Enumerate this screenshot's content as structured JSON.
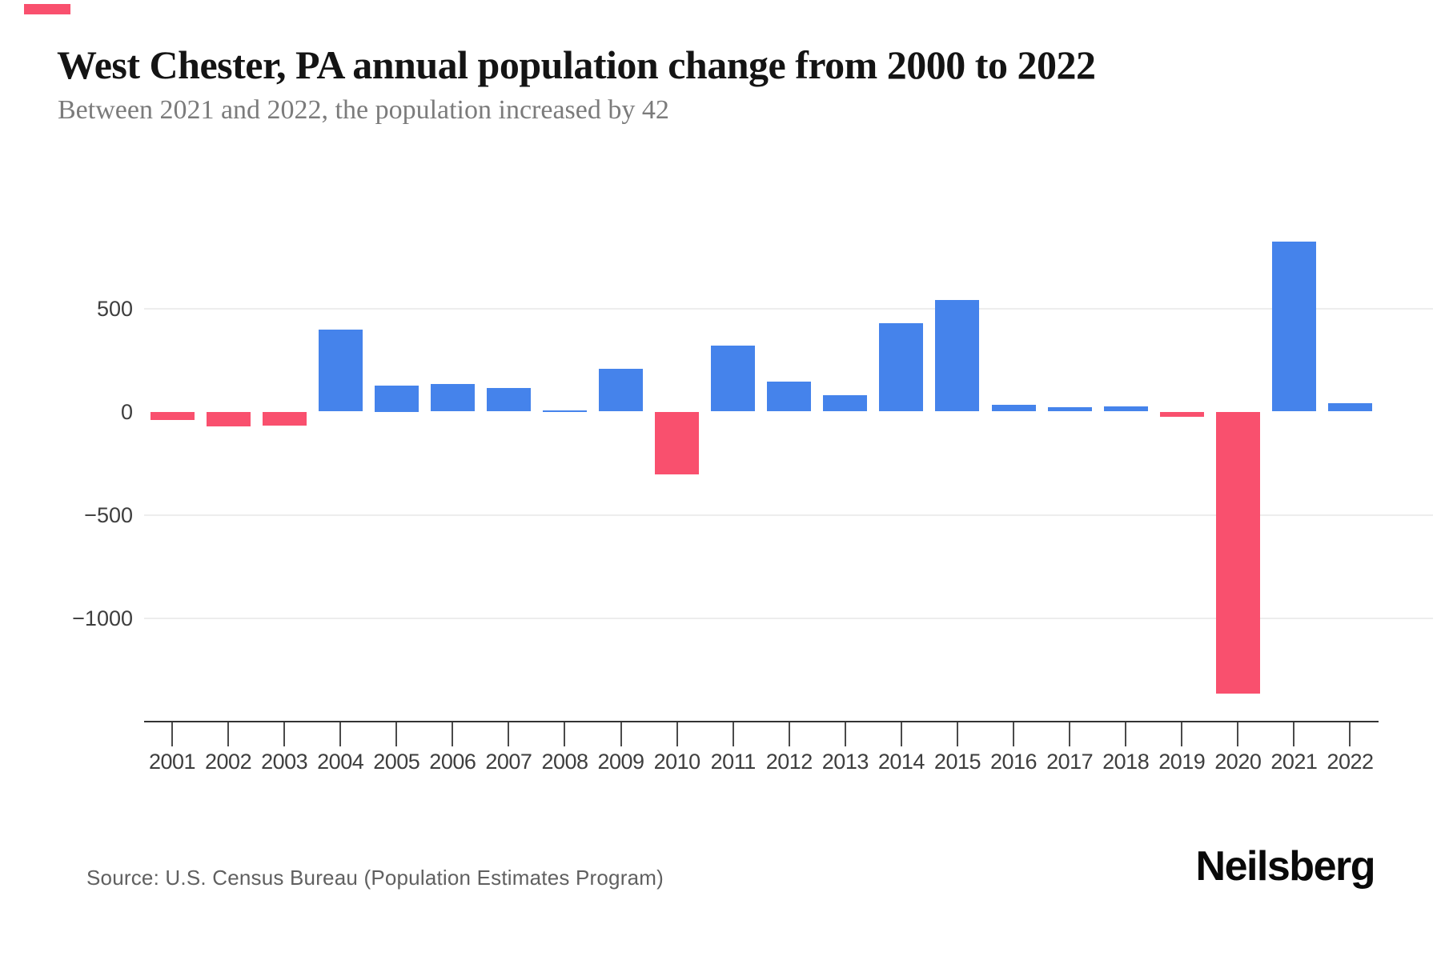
{
  "page": {
    "background": "#ffffff"
  },
  "header": {
    "title": "West Chester, PA annual population change from 2000 to 2022",
    "subtitle": "Between 2021 and 2022, the population increased by 42"
  },
  "footer": {
    "source": "Source: U.S. Census Bureau (Population Estimates Program)",
    "brand": "Neilsberg"
  },
  "chart_data": {
    "type": "bar",
    "title": "West Chester, PA annual population change from 2000 to 2022",
    "subtitle": "Between 2021 and 2022, the population increased by 42",
    "categories": [
      "2001",
      "2002",
      "2003",
      "2004",
      "2005",
      "2006",
      "2007",
      "2008",
      "2009",
      "2010",
      "2011",
      "2012",
      "2013",
      "2014",
      "2015",
      "2016",
      "2017",
      "2018",
      "2019",
      "2020",
      "2021",
      "2022"
    ],
    "values": [
      -40,
      -72,
      -66,
      397,
      125,
      132,
      114,
      6,
      208,
      -303,
      320,
      146,
      78,
      428,
      541,
      33,
      21,
      24,
      -26,
      -1366,
      824,
      42
    ],
    "xlabel": "",
    "ylabel": "",
    "ylim": [
      -1450,
      900
    ],
    "yticks": [
      {
        "label": "500",
        "value": 500,
        "grid": true
      },
      {
        "label": "0",
        "value": 0,
        "grid": false
      },
      {
        "label": "−500",
        "value": -500,
        "grid": true
      },
      {
        "label": "−1000",
        "value": -1000,
        "grid": true
      }
    ],
    "grid": "horizontal-only",
    "legend": "none",
    "colors": {
      "positive": "#4583eb",
      "negative": "#f9506e"
    }
  }
}
